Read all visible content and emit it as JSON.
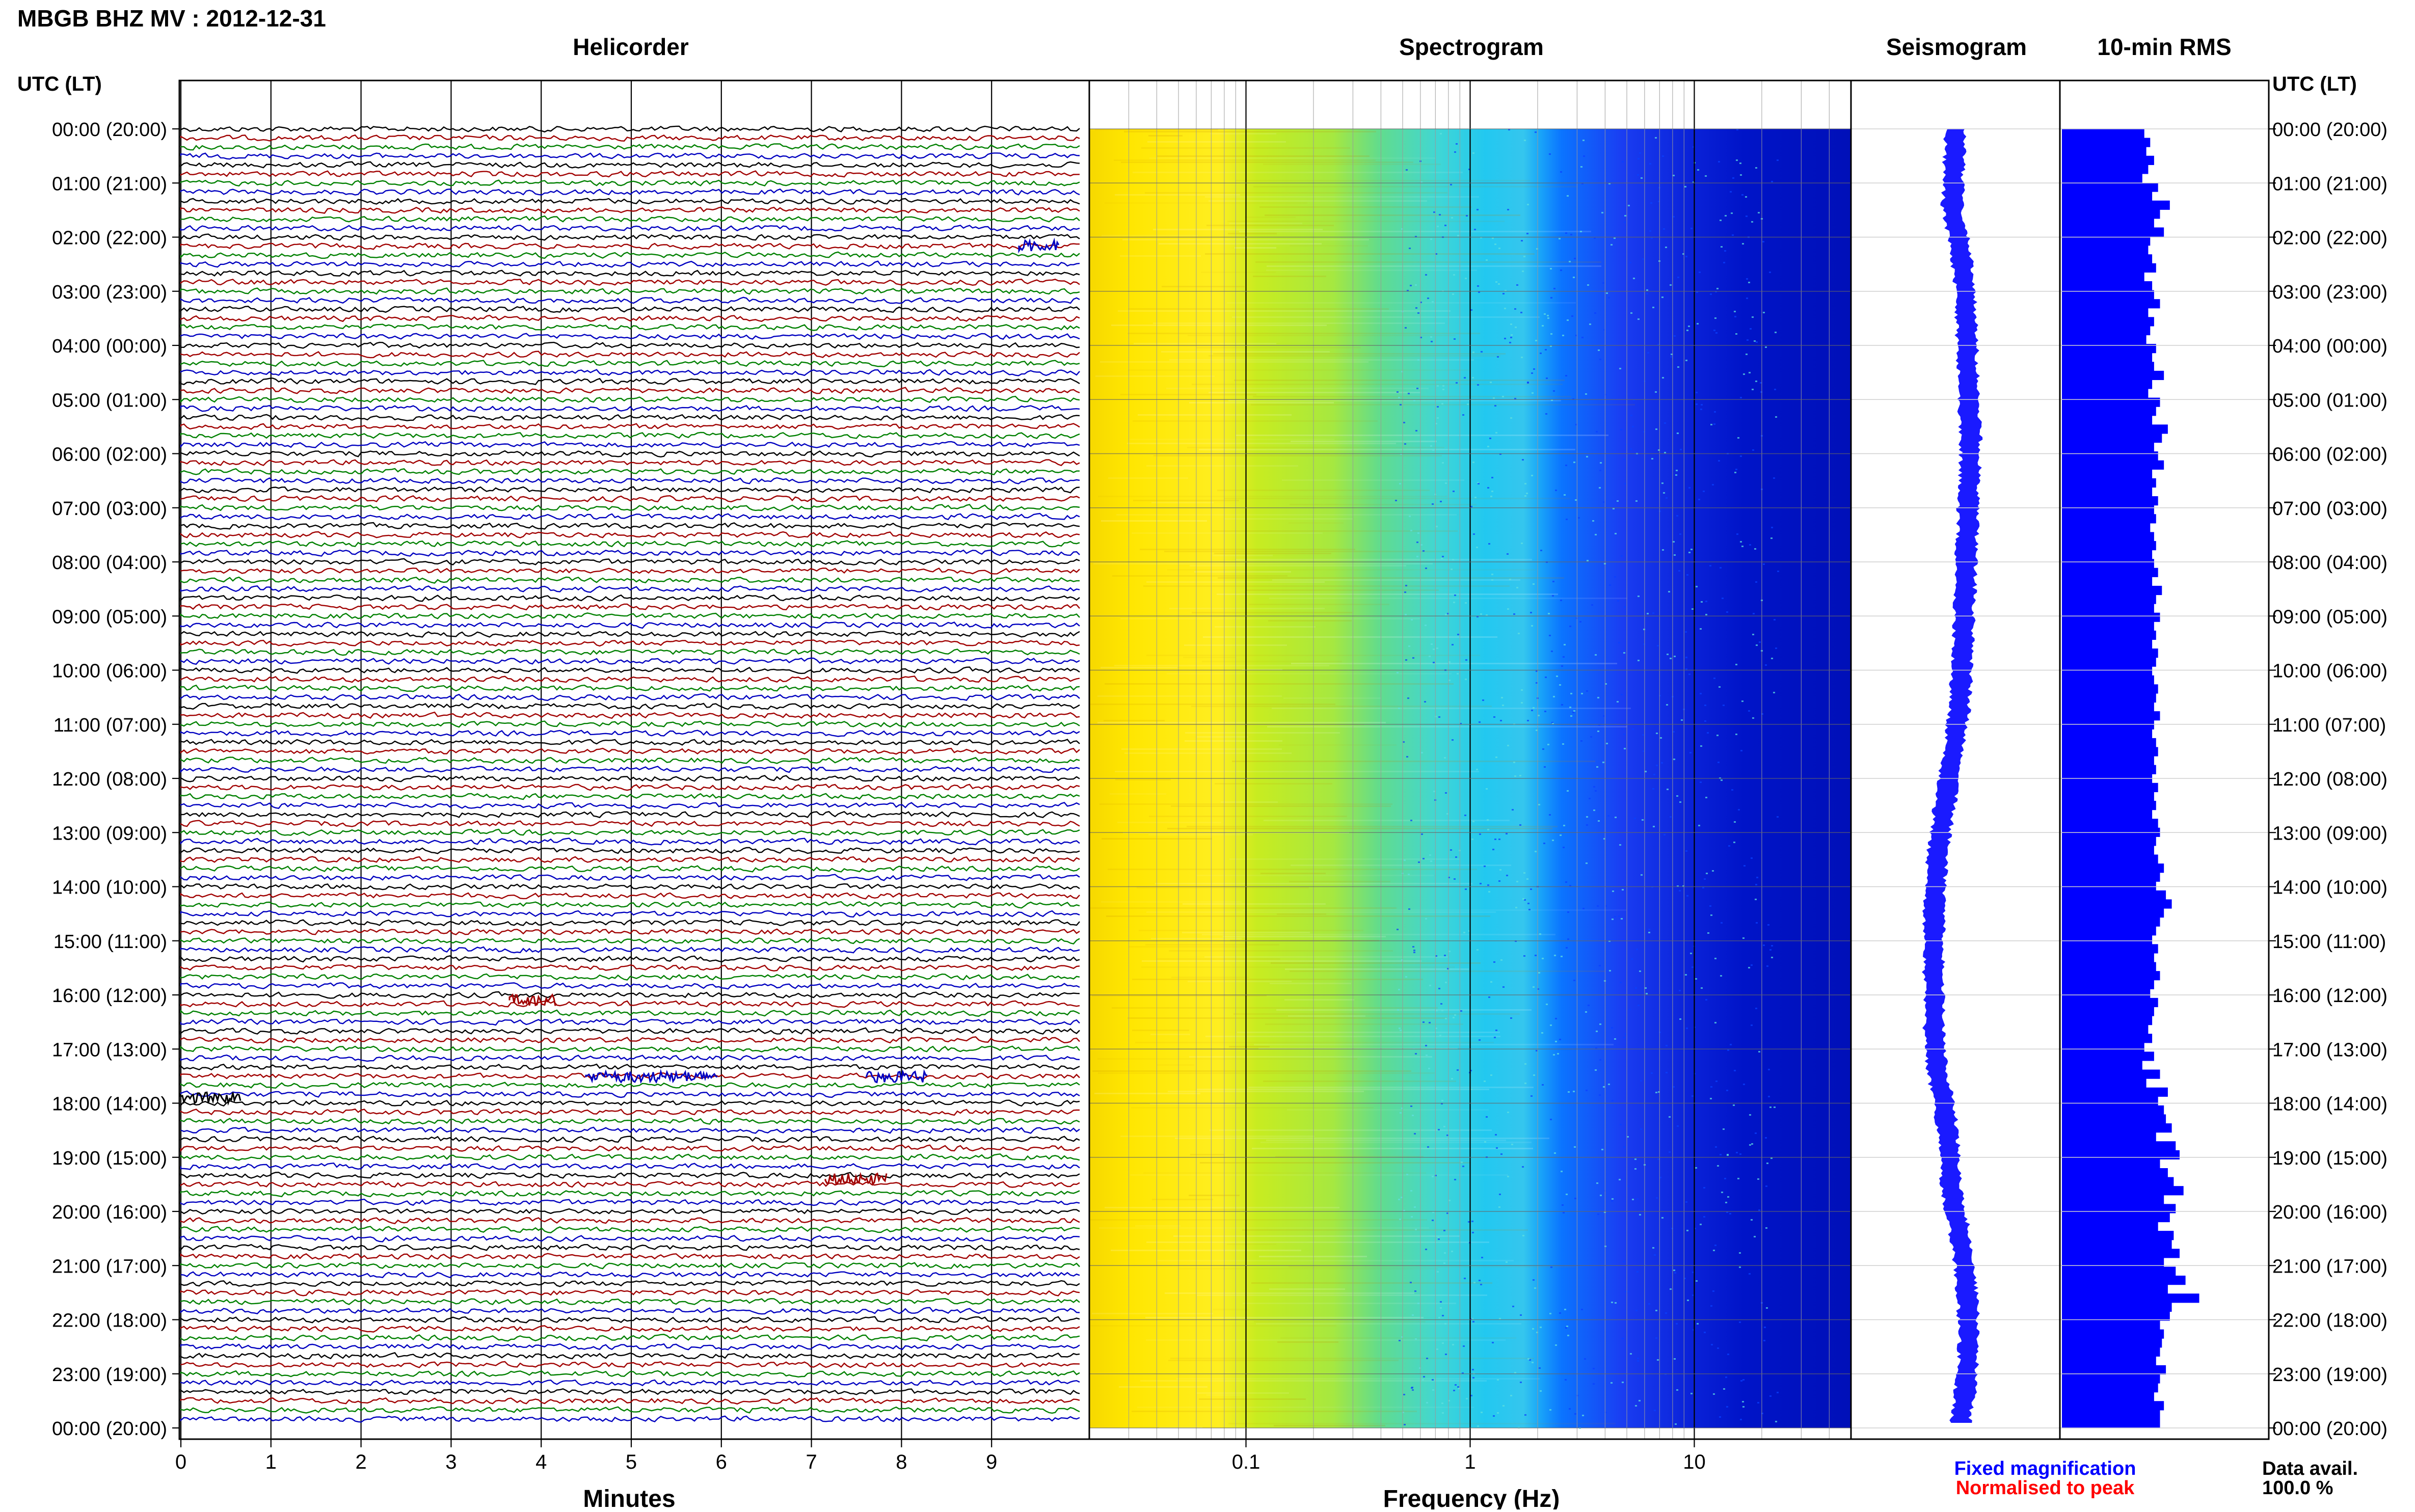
{
  "header": {
    "title": "MBGB BHZ MV : 2012-12-31",
    "left_axis_label": "UTC (LT)",
    "right_axis_label": "UTC (LT)"
  },
  "panels": {
    "helicorder": "Helicorder",
    "spectrogram": "Spectrogram",
    "seismogram": "Seismogram",
    "rms": "10-min RMS"
  },
  "footer": {
    "minutes_label": "Minutes",
    "frequency_label": "Frequency (Hz)",
    "fixed_magnification": "Fixed magnification",
    "normalised_to_peak": "Normalised to peak",
    "data_avail_label": "Data avail.",
    "data_avail_value": "100.0 %"
  },
  "colors": {
    "trace_cycle": [
      "#000000",
      "#a00000",
      "#008000",
      "#0000c0"
    ],
    "seismogram": "#1a1aff",
    "rms_bars": "#0000ff",
    "fixed_magnification": "#0000ff",
    "normalised_to_peak": "#ff0000"
  },
  "chart_data": [
    {
      "type": "line",
      "name": "helicorder",
      "xlabel": "Minutes",
      "xlim": [
        0,
        10
      ],
      "xticks": [
        0,
        1,
        2,
        3,
        4,
        5,
        6,
        7,
        8,
        9
      ],
      "time_labels": [
        "00:00 (20:00)",
        "01:00 (21:00)",
        "02:00 (22:00)",
        "03:00 (23:00)",
        "04:00 (00:00)",
        "05:00 (01:00)",
        "06:00 (02:00)",
        "07:00 (03:00)",
        "08:00 (04:00)",
        "09:00 (05:00)",
        "10:00 (06:00)",
        "11:00 (07:00)",
        "12:00 (08:00)",
        "13:00 (09:00)",
        "14:00 (10:00)",
        "15:00 (11:00)",
        "16:00 (12:00)",
        "17:00 (13:00)",
        "18:00 (14:00)",
        "19:00 (15:00)",
        "20:00 (16:00)",
        "21:00 (17:00)",
        "22:00 (18:00)",
        "23:00 (19:00)",
        "00:00 (20:00)"
      ],
      "traces_per_hour": 6
    },
    {
      "type": "heatmap",
      "name": "spectrogram",
      "xlabel": "Frequency (Hz)",
      "xscale": "log",
      "xlim": [
        0.02,
        50
      ],
      "xticks": [
        0.1,
        1,
        10
      ],
      "colormap": [
        "#f6d800",
        "#ffee00",
        "#d9f000",
        "#7fe866",
        "#3fd6d6",
        "#22c8f0",
        "#0b74ff",
        "#1a3df2",
        "#0014c8"
      ]
    },
    {
      "type": "line",
      "name": "seismogram",
      "offsets": [
        0.0,
        -0.05,
        -0.1,
        0.15,
        0.3,
        0.35,
        0.4,
        0.45,
        0.5,
        0.45,
        0.4,
        0.35,
        0.3,
        0.25,
        0.2,
        0.1,
        -0.1,
        -0.3,
        -0.5,
        -0.65,
        -0.7,
        -0.72,
        -0.7,
        -0.7,
        -0.6,
        -0.35,
        -0.2,
        -0.15,
        0.1,
        0.3,
        0.4,
        0.45,
        0.35,
        0.15
      ]
    },
    {
      "type": "bar",
      "name": "10-min RMS",
      "values": [
        0.42,
        0.45,
        0.43,
        0.47,
        0.44,
        0.41,
        0.49,
        0.46,
        0.55,
        0.5,
        0.47,
        0.52,
        0.45,
        0.44,
        0.46,
        0.48,
        0.42,
        0.46,
        0.47,
        0.5,
        0.44,
        0.47,
        0.45,
        0.43,
        0.48,
        0.46,
        0.47,
        0.52,
        0.46,
        0.44,
        0.5,
        0.48,
        0.46,
        0.54,
        0.51,
        0.47,
        0.49,
        0.52,
        0.46,
        0.48,
        0.46,
        0.49,
        0.47,
        0.48,
        0.45,
        0.47,
        0.48,
        0.46,
        0.47,
        0.49,
        0.46,
        0.51,
        0.48,
        0.47,
        0.5,
        0.47,
        0.48,
        0.46,
        0.49,
        0.48,
        0.46,
        0.47,
        0.49,
        0.48,
        0.47,
        0.5,
        0.47,
        0.46,
        0.48,
        0.49,
        0.47,
        0.48,
        0.46,
        0.49,
        0.47,
        0.48,
        0.46,
        0.49,
        0.5,
        0.48,
        0.47,
        0.49,
        0.52,
        0.5,
        0.48,
        0.53,
        0.56,
        0.52,
        0.5,
        0.48,
        0.46,
        0.49,
        0.47,
        0.48,
        0.5,
        0.47,
        0.45,
        0.49,
        0.47,
        0.46,
        0.44,
        0.46,
        0.42,
        0.47,
        0.41,
        0.5,
        0.43,
        0.54,
        0.49,
        0.52,
        0.53,
        0.56,
        0.48,
        0.58,
        0.6,
        0.5,
        0.54,
        0.57,
        0.62,
        0.52,
        0.58,
        0.55,
        0.49,
        0.57,
        0.56,
        0.6,
        0.52,
        0.58,
        0.63,
        0.54,
        0.7,
        0.56,
        0.55,
        0.5,
        0.52,
        0.51,
        0.5,
        0.48,
        0.53,
        0.5,
        0.49,
        0.47,
        0.52,
        0.5,
        0.5
      ]
    }
  ]
}
